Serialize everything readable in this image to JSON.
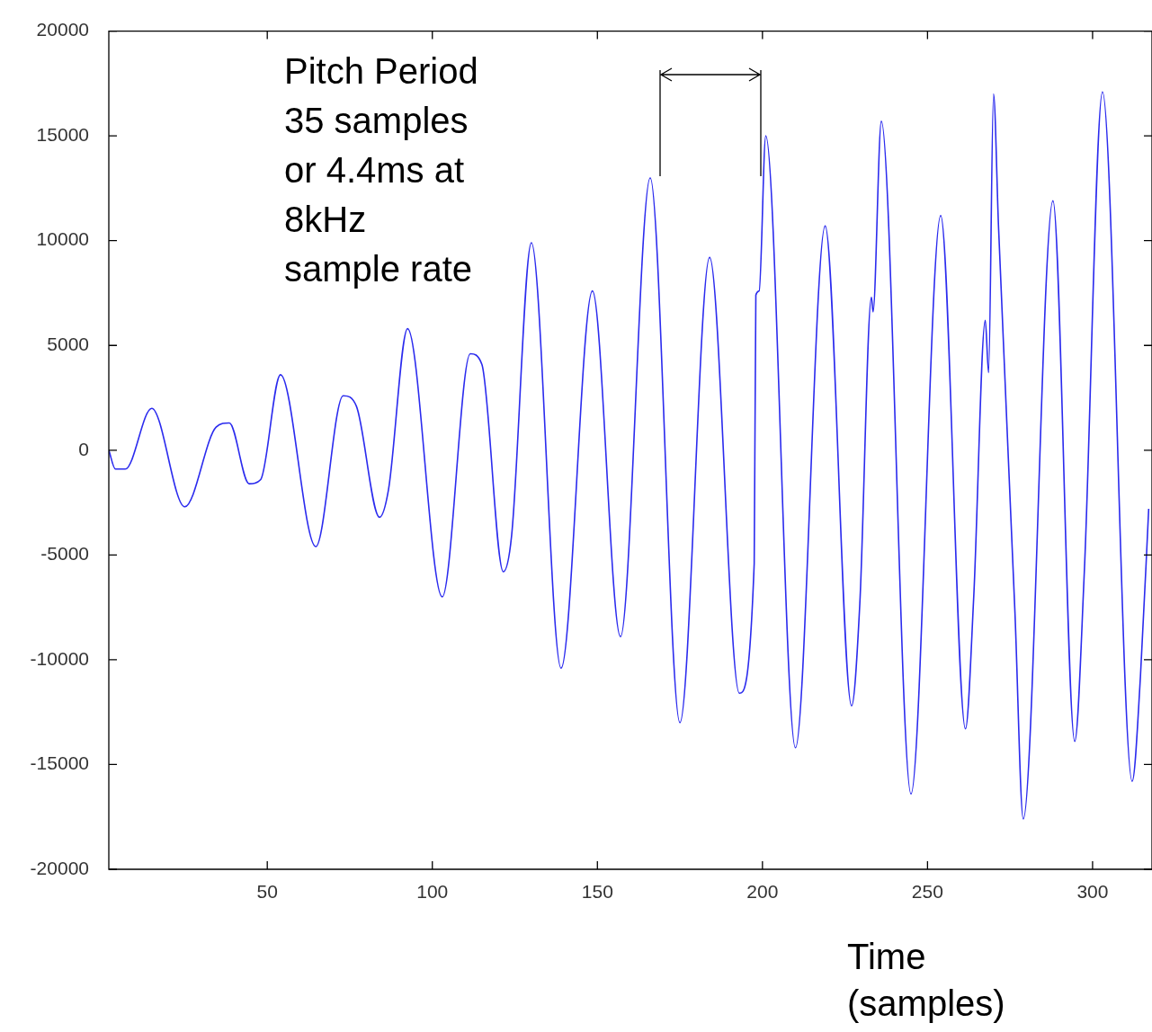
{
  "chart_data": {
    "type": "line",
    "xlabel": "Time\n(samples)",
    "annotations": [
      "Pitch Period\n35 samples\nor 4.4ms at\n8kHz\nsample rate"
    ],
    "xlim": [
      2,
      318
    ],
    "xticks": [
      50,
      100,
      150,
      200,
      250,
      300
    ],
    "ylim": [
      -20000,
      20000
    ],
    "yticks": [
      -20000,
      -15000,
      -10000,
      -5000,
      0,
      5000,
      10000,
      15000,
      20000
    ],
    "grid": false,
    "legend": false,
    "marker": "none",
    "series": [
      {
        "color": "#2b2bee",
        "x": [
          2,
          4,
          7,
          15,
          25,
          34.5,
          38.5,
          44.5,
          48,
          54,
          64.7,
          73,
          77,
          84,
          86.7,
          92.5,
          103,
          111.5,
          115,
          121.5,
          124,
          130,
          139,
          148.5,
          157,
          166,
          175,
          184,
          193,
          197.5,
          198,
          199,
          201,
          210,
          219,
          227,
          229.5,
          233,
          233.5,
          236,
          245,
          254,
          261.5,
          264,
          267.5,
          268.5,
          270,
          271.5,
          276.5,
          279,
          288,
          294.6,
          297.5,
          303,
          312,
          314.5,
          317
        ],
        "values": [
          0,
          -900,
          -900,
          2000,
          -2700,
          1100,
          1300,
          -1600,
          -1400,
          3600,
          -4600,
          2600,
          2100,
          -3200,
          -1900,
          5800,
          -7000,
          4600,
          4100,
          -5800,
          -4100,
          9900,
          -10400,
          7600,
          -8900,
          13000,
          -13000,
          9200,
          -11600,
          -5400,
          7400,
          7600,
          15000,
          -14200,
          10700,
          -12200,
          -7300,
          7300,
          6600,
          15700,
          -16400,
          11200,
          -13300,
          -7000,
          6200,
          3700,
          17000,
          10700,
          -7800,
          -17600,
          11900,
          -13900,
          -5800,
          17100,
          -15800,
          -10800,
          -2800
        ]
      }
    ]
  }
}
